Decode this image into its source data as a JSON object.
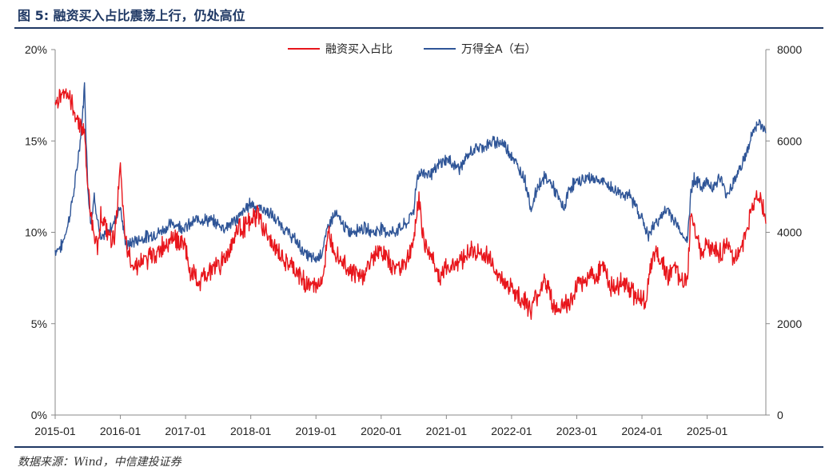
{
  "title": "图 5: 融资买入占比震荡上行，仍处高位",
  "source": "数据来源：Wind，中信建投证券",
  "chart_data": {
    "type": "line",
    "x_ticks": [
      "2015-01",
      "2016-01",
      "2017-01",
      "2018-01",
      "2019-01",
      "2020-01",
      "2021-01",
      "2022-01",
      "2023-01",
      "2024-01",
      "2025-01"
    ],
    "y_left": {
      "range": [
        0,
        20
      ],
      "ticks": [
        "0%",
        "5%",
        "10%",
        "15%",
        "20%"
      ]
    },
    "y_right": {
      "range": [
        0,
        8000
      ],
      "ticks": [
        "0",
        "2000",
        "4000",
        "6000",
        "8000"
      ]
    },
    "legend": [
      "融资买入占比",
      "万得全A（右）"
    ],
    "colors": {
      "margin": "#e8161c",
      "index": "#2f5597"
    },
    "series": [
      {
        "name": "融资买入占比",
        "axis": "left",
        "points": [
          [
            2015.0,
            16.8
          ],
          [
            2015.1,
            17.8
          ],
          [
            2015.2,
            17.5
          ],
          [
            2015.3,
            16.5
          ],
          [
            2015.45,
            15.5
          ],
          [
            2015.5,
            12.5
          ],
          [
            2015.55,
            11.0
          ],
          [
            2015.6,
            10.0
          ],
          [
            2015.65,
            9.0
          ],
          [
            2015.7,
            11.0
          ],
          [
            2015.8,
            10.0
          ],
          [
            2015.9,
            9.5
          ],
          [
            2016.0,
            13.5
          ],
          [
            2016.05,
            10.5
          ],
          [
            2016.1,
            9.0
          ],
          [
            2016.2,
            8.2
          ],
          [
            2016.4,
            8.5
          ],
          [
            2016.6,
            9.0
          ],
          [
            2016.8,
            9.8
          ],
          [
            2017.0,
            9.2
          ],
          [
            2017.05,
            8.0
          ],
          [
            2017.2,
            7.2
          ],
          [
            2017.4,
            8.0
          ],
          [
            2017.6,
            8.5
          ],
          [
            2017.8,
            10.2
          ],
          [
            2018.0,
            10.5
          ],
          [
            2018.1,
            11.0
          ],
          [
            2018.3,
            9.5
          ],
          [
            2018.5,
            8.5
          ],
          [
            2018.7,
            7.8
          ],
          [
            2018.85,
            7.2
          ],
          [
            2019.0,
            7.0
          ],
          [
            2019.1,
            7.5
          ],
          [
            2019.2,
            10.0
          ],
          [
            2019.3,
            9.0
          ],
          [
            2019.5,
            8.0
          ],
          [
            2019.7,
            7.5
          ],
          [
            2019.9,
            8.8
          ],
          [
            2020.0,
            9.0
          ],
          [
            2020.2,
            8.0
          ],
          [
            2020.4,
            8.5
          ],
          [
            2020.5,
            9.5
          ],
          [
            2020.58,
            12.0
          ],
          [
            2020.65,
            9.5
          ],
          [
            2020.8,
            8.5
          ],
          [
            2020.9,
            7.5
          ],
          [
            2021.0,
            8.0
          ],
          [
            2021.2,
            8.5
          ],
          [
            2021.4,
            9.0
          ],
          [
            2021.6,
            8.7
          ],
          [
            2021.7,
            8.5
          ],
          [
            2021.8,
            7.5
          ],
          [
            2021.9,
            7.2
          ],
          [
            2022.0,
            7.0
          ],
          [
            2022.1,
            6.5
          ],
          [
            2022.2,
            6.2
          ],
          [
            2022.3,
            5.8
          ],
          [
            2022.4,
            6.5
          ],
          [
            2022.5,
            7.5
          ],
          [
            2022.6,
            6.5
          ],
          [
            2022.7,
            5.5
          ],
          [
            2022.8,
            6.2
          ],
          [
            2022.9,
            6.0
          ],
          [
            2023.0,
            7.0
          ],
          [
            2023.1,
            7.2
          ],
          [
            2023.2,
            7.8
          ],
          [
            2023.3,
            7.5
          ],
          [
            2023.4,
            8.5
          ],
          [
            2023.5,
            7.0
          ],
          [
            2023.6,
            6.8
          ],
          [
            2023.7,
            7.5
          ],
          [
            2023.8,
            7.0
          ],
          [
            2023.9,
            6.5
          ],
          [
            2024.0,
            6.5
          ],
          [
            2024.05,
            6.2
          ],
          [
            2024.1,
            7.0
          ],
          [
            2024.15,
            8.5
          ],
          [
            2024.2,
            9.0
          ],
          [
            2024.3,
            8.5
          ],
          [
            2024.4,
            7.5
          ],
          [
            2024.5,
            8.2
          ],
          [
            2024.6,
            7.2
          ],
          [
            2024.7,
            7.5
          ],
          [
            2024.75,
            11.0
          ],
          [
            2024.8,
            10.5
          ],
          [
            2024.9,
            9.0
          ],
          [
            2025.0,
            9.5
          ],
          [
            2025.1,
            9.0
          ],
          [
            2025.2,
            8.8
          ],
          [
            2025.3,
            9.5
          ],
          [
            2025.4,
            8.5
          ],
          [
            2025.5,
            9.0
          ],
          [
            2025.6,
            10.0
          ],
          [
            2025.7,
            11.5
          ],
          [
            2025.75,
            12.0
          ],
          [
            2025.85,
            11.5
          ],
          [
            2025.9,
            10.5
          ],
          [
            2025.95,
            10.0
          ],
          [
            2026.0,
            10.8
          ]
        ]
      },
      {
        "name": "万得全A（右）",
        "axis": "right",
        "points": [
          [
            2015.0,
            3600
          ],
          [
            2015.1,
            3700
          ],
          [
            2015.2,
            4200
          ],
          [
            2015.3,
            5000
          ],
          [
            2015.4,
            6200
          ],
          [
            2015.45,
            7200
          ],
          [
            2015.5,
            5000
          ],
          [
            2015.55,
            4200
          ],
          [
            2015.6,
            4800
          ],
          [
            2015.7,
            3800
          ],
          [
            2015.8,
            4000
          ],
          [
            2015.9,
            4200
          ],
          [
            2016.0,
            4600
          ],
          [
            2016.05,
            4000
          ],
          [
            2016.1,
            3700
          ],
          [
            2016.2,
            3800
          ],
          [
            2016.4,
            3900
          ],
          [
            2016.6,
            4000
          ],
          [
            2016.8,
            4200
          ],
          [
            2017.0,
            4100
          ],
          [
            2017.2,
            4300
          ],
          [
            2017.4,
            4250
          ],
          [
            2017.6,
            4100
          ],
          [
            2017.8,
            4300
          ],
          [
            2018.0,
            4650
          ],
          [
            2018.1,
            4550
          ],
          [
            2018.2,
            4500
          ],
          [
            2018.3,
            4400
          ],
          [
            2018.5,
            4100
          ],
          [
            2018.7,
            3800
          ],
          [
            2018.85,
            3500
          ],
          [
            2019.0,
            3400
          ],
          [
            2019.1,
            3600
          ],
          [
            2019.2,
            4200
          ],
          [
            2019.3,
            4400
          ],
          [
            2019.5,
            4000
          ],
          [
            2019.7,
            4100
          ],
          [
            2019.9,
            4000
          ],
          [
            2020.0,
            4100
          ],
          [
            2020.1,
            4000
          ],
          [
            2020.2,
            4000
          ],
          [
            2020.4,
            4200
          ],
          [
            2020.5,
            4500
          ],
          [
            2020.55,
            5200
          ],
          [
            2020.6,
            5300
          ],
          [
            2020.8,
            5300
          ],
          [
            2020.9,
            5500
          ],
          [
            2021.0,
            5600
          ],
          [
            2021.1,
            5500
          ],
          [
            2021.2,
            5400
          ],
          [
            2021.4,
            5800
          ],
          [
            2021.6,
            5900
          ],
          [
            2021.8,
            6000
          ],
          [
            2021.9,
            5900
          ],
          [
            2022.0,
            5700
          ],
          [
            2022.1,
            5400
          ],
          [
            2022.2,
            5200
          ],
          [
            2022.3,
            4500
          ],
          [
            2022.4,
            5000
          ],
          [
            2022.5,
            5200
          ],
          [
            2022.6,
            5100
          ],
          [
            2022.7,
            4800
          ],
          [
            2022.8,
            4500
          ],
          [
            2022.9,
            5000
          ],
          [
            2023.0,
            5100
          ],
          [
            2023.2,
            5200
          ],
          [
            2023.4,
            5100
          ],
          [
            2023.6,
            4900
          ],
          [
            2023.8,
            4800
          ],
          [
            2023.9,
            4600
          ],
          [
            2024.0,
            4300
          ],
          [
            2024.1,
            3900
          ],
          [
            2024.2,
            4200
          ],
          [
            2024.4,
            4500
          ],
          [
            2024.6,
            4000
          ],
          [
            2024.7,
            3800
          ],
          [
            2024.75,
            4900
          ],
          [
            2024.8,
            5200
          ],
          [
            2024.9,
            5000
          ],
          [
            2025.0,
            5100
          ],
          [
            2025.1,
            5000
          ],
          [
            2025.2,
            5200
          ],
          [
            2025.3,
            4800
          ],
          [
            2025.4,
            5100
          ],
          [
            2025.5,
            5400
          ],
          [
            2025.6,
            5700
          ],
          [
            2025.7,
            6200
          ],
          [
            2025.8,
            6400
          ],
          [
            2025.9,
            6200
          ],
          [
            2026.0,
            6400
          ]
        ]
      }
    ]
  }
}
